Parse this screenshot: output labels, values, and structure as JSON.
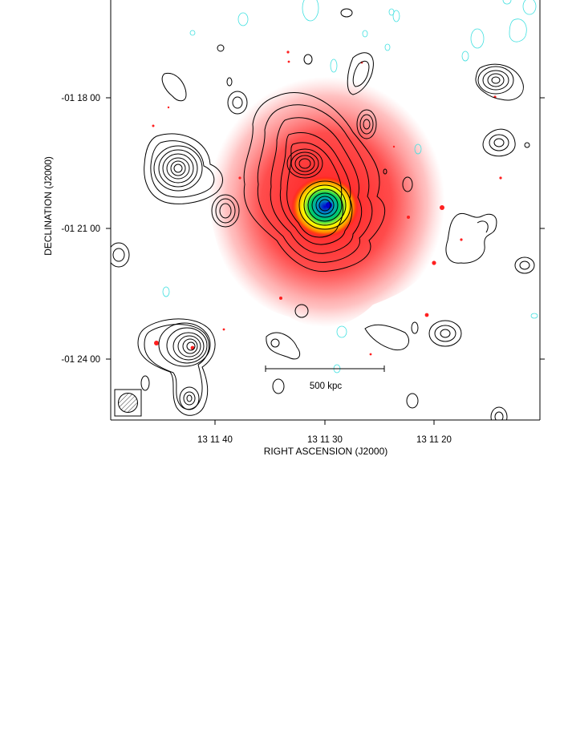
{
  "figure": {
    "xlabel": "RIGHT ASCENSION  (J2000)",
    "ylabel": "DECLINATION  (J2000)",
    "x_ticks": [
      "13 11 40",
      "13 11 30",
      "13 11 20"
    ],
    "y_ticks": [
      "-01 18 00",
      "-01 21 00",
      "-01 24 00"
    ],
    "scale_bar_label": "500 kpc",
    "colors": {
      "xray_peak": "#0000cc",
      "xray_high": "#00c070",
      "xray_mid": "#ffff00",
      "xray_low": "#ff0000",
      "radio_positive_contours": "#000000",
      "radio_negative_contours": "#40e0e0",
      "background": "#ffffff"
    }
  }
}
